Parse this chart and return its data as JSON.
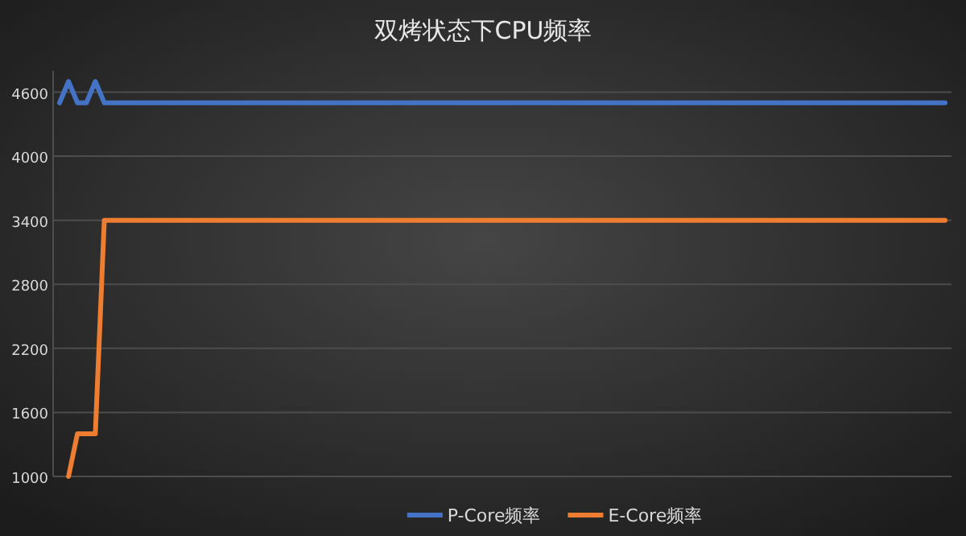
{
  "chart_data": {
    "type": "line",
    "title": "双烤状态下CPU频率",
    "categories": [
      null,
      null,
      null,
      null,
      null,
      null,
      null,
      null,
      null,
      null,
      null,
      null,
      null,
      null,
      null,
      null,
      null,
      null,
      null,
      null,
      null,
      null,
      null,
      null,
      null,
      null,
      null,
      null,
      null,
      null,
      null,
      null,
      null,
      null,
      null,
      null,
      null,
      null,
      null,
      null,
      null,
      null,
      null,
      null,
      null,
      null,
      null,
      null,
      null,
      null,
      null,
      null,
      null,
      null,
      null,
      null,
      null,
      null,
      null,
      null,
      null,
      null,
      null,
      null,
      null,
      null,
      null,
      null,
      null,
      null,
      null,
      null,
      null,
      null,
      null,
      null,
      null,
      null,
      null,
      null,
      null,
      null,
      null,
      null,
      null,
      null,
      null,
      null,
      null,
      null,
      null,
      null,
      null,
      null,
      null,
      null,
      null,
      null,
      null,
      null
    ],
    "series": [
      {
        "name": "P-Core频率",
        "color": "#4472c4",
        "values": [
          4500,
          4700,
          4500,
          4500,
          4700,
          4500,
          4500,
          4500,
          4500,
          4500,
          4500,
          4500,
          4500,
          4500,
          4500,
          4500,
          4500,
          4500,
          4500,
          4500,
          4500,
          4500,
          4500,
          4500,
          4500,
          4500,
          4500,
          4500,
          4500,
          4500,
          4500,
          4500,
          4500,
          4500,
          4500,
          4500,
          4500,
          4500,
          4500,
          4500,
          4500,
          4500,
          4500,
          4500,
          4500,
          4500,
          4500,
          4500,
          4500,
          4500,
          4500,
          4500,
          4500,
          4500,
          4500,
          4500,
          4500,
          4500,
          4500,
          4500,
          4500,
          4500,
          4500,
          4500,
          4500,
          4500,
          4500,
          4500,
          4500,
          4500,
          4500,
          4500,
          4500,
          4500,
          4500,
          4500,
          4500,
          4500,
          4500,
          4500,
          4500,
          4500,
          4500,
          4500,
          4500,
          4500,
          4500,
          4500,
          4500,
          4500,
          4500,
          4500,
          4500,
          4500,
          4500,
          4500,
          4500,
          4500,
          4500,
          4500
        ]
      },
      {
        "name": "E-Core频率",
        "color": "#ed7d31",
        "values": [
          null,
          1000,
          1400,
          1400,
          1400,
          3400,
          3400,
          3400,
          3400,
          3400,
          3400,
          3400,
          3400,
          3400,
          3400,
          3400,
          3400,
          3400,
          3400,
          3400,
          3400,
          3400,
          3400,
          3400,
          3400,
          3400,
          3400,
          3400,
          3400,
          3400,
          3400,
          3400,
          3400,
          3400,
          3400,
          3400,
          3400,
          3400,
          3400,
          3400,
          3400,
          3400,
          3400,
          3400,
          3400,
          3400,
          3400,
          3400,
          3400,
          3400,
          3400,
          3400,
          3400,
          3400,
          3400,
          3400,
          3400,
          3400,
          3400,
          3400,
          3400,
          3400,
          3400,
          3400,
          3400,
          3400,
          3400,
          3400,
          3400,
          3400,
          3400,
          3400,
          3400,
          3400,
          3400,
          3400,
          3400,
          3400,
          3400,
          3400,
          3400,
          3400,
          3400,
          3400,
          3400,
          3400,
          3400,
          3400,
          3400,
          3400,
          3400,
          3400,
          3400,
          3400,
          3400,
          3400,
          3400,
          3400,
          3400,
          3400
        ]
      }
    ],
    "ylim": [
      1000,
      4800
    ],
    "yticks": [
      1000,
      1600,
      2200,
      2800,
      3400,
      4000,
      4600
    ],
    "grid": "y",
    "legend": "bottom",
    "tick_labels": "y",
    "line_style": "solid",
    "marker": "none"
  }
}
